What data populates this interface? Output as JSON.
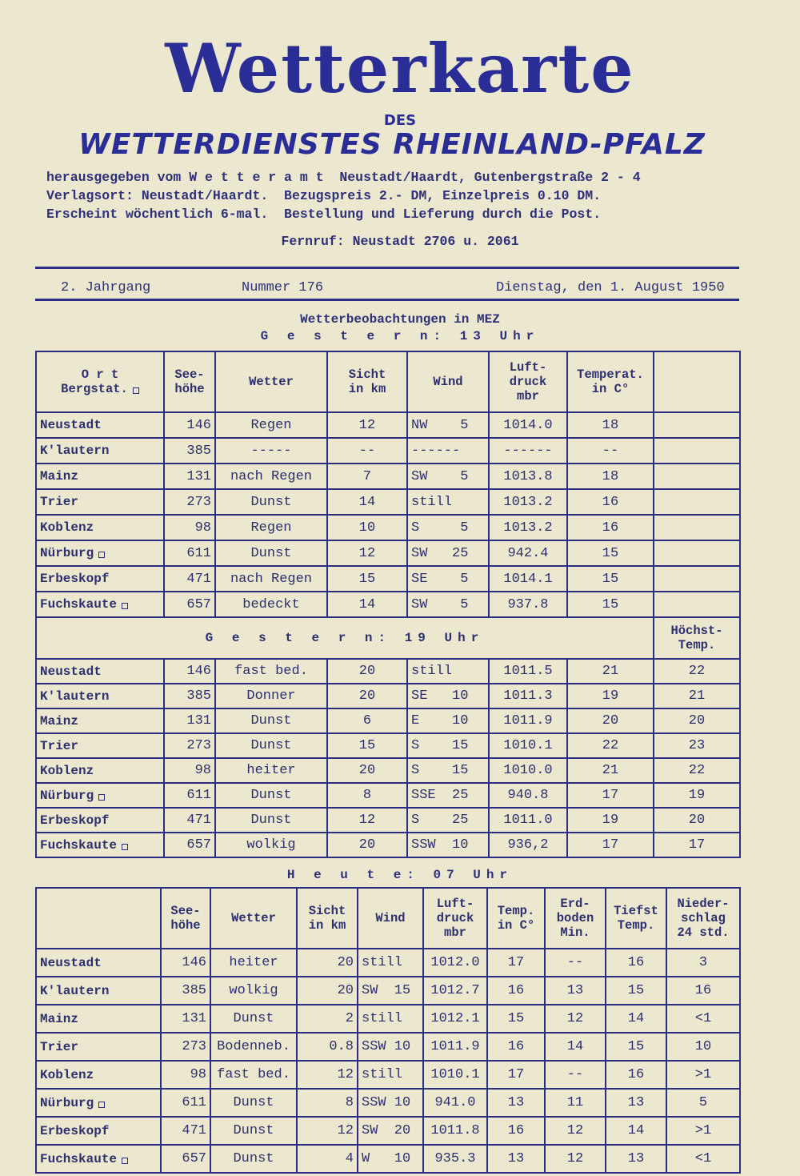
{
  "header": {
    "title": "Wetterkarte",
    "des": "DES",
    "subtitle": "WETTERDIENSTES RHEINLAND-PFALZ",
    "info_lines": [
      "herausgegeben vom W e t t e r a m t  Neustadt/Haardt, Gutenbergstraße 2 - 4",
      "Verlagsort: Neustadt/Haardt.  Bezugspreis 2.- DM, Einzelpreis 0.10 DM.",
      "Erscheint wöchentlich 6-mal.  Bestellung und Lieferung durch die Post."
    ],
    "phone": "Fernruf: Neustadt 2706 u. 2061"
  },
  "issue": {
    "volume": "2.  Jahrgang",
    "number": "Nummer 176",
    "date": "Dienstag, den 1. August 1950"
  },
  "observations_title": "Wetterbeobachtungen in MEZ",
  "section1": {
    "title": "G e s t e r n:  13 Uhr",
    "headers": [
      "O r t\nBergstat. □",
      "See-\nhöhe",
      "Wetter",
      "Sicht\nin km",
      "Wind",
      "Luft-\ndruck\nmbr",
      "Temperat.\nin C°",
      ""
    ],
    "rows": [
      [
        "Neustadt",
        "146",
        "Regen",
        "12",
        "NW    5",
        "1014.0",
        "18",
        ""
      ],
      [
        "K'lautern",
        "385",
        "-----",
        "--",
        "------",
        "------",
        "--",
        ""
      ],
      [
        "Mainz",
        "131",
        "nach Regen",
        "7",
        "SW    5",
        "1013.8",
        "18",
        ""
      ],
      [
        "Trier",
        "273",
        "Dunst",
        "14",
        "still",
        "1013.2",
        "16",
        ""
      ],
      [
        "Koblenz",
        "98",
        "Regen",
        "10",
        "S     5",
        "1013.2",
        "16",
        ""
      ],
      [
        "Nürburg □",
        "611",
        "Dunst",
        "12",
        "SW   25",
        "942.4",
        "15",
        ""
      ],
      [
        "Erbeskopf",
        "471",
        "nach Regen",
        "15",
        "SE    5",
        "1014.1",
        "15",
        ""
      ],
      [
        "Fuchskaute □",
        "657",
        "bedeckt",
        "14",
        "SW    5",
        "937.8",
        "15",
        ""
      ]
    ]
  },
  "section2": {
    "title": "G e s t e r n:  19 Uhr",
    "extra_header": "Höchst-\nTemp.",
    "rows": [
      [
        "Neustadt",
        "146",
        "fast bed.",
        "20",
        "still",
        "1011.5",
        "21",
        "22"
      ],
      [
        "K'lautern",
        "385",
        "Donner",
        "20",
        "SE   10",
        "1011.3",
        "19",
        "21"
      ],
      [
        "Mainz",
        "131",
        "Dunst",
        "6",
        "E    10",
        "1011.9",
        "20",
        "20"
      ],
      [
        "Trier",
        "273",
        "Dunst",
        "15",
        "S    15",
        "1010.1",
        "22",
        "23"
      ],
      [
        "Koblenz",
        "98",
        "heiter",
        "20",
        "S    15",
        "1010.0",
        "21",
        "22"
      ],
      [
        "Nürburg □",
        "611",
        "Dunst",
        "8",
        "SSE  25",
        "940.8",
        "17",
        "19"
      ],
      [
        "Erbeskopf",
        "471",
        "Dunst",
        "12",
        "S    25",
        "1011.0",
        "19",
        "20"
      ],
      [
        "Fuchskaute □",
        "657",
        "wolkig",
        "20",
        "SSW  10",
        "936,2",
        "17",
        "17"
      ]
    ]
  },
  "section3": {
    "title": "H e u t e:  07 Uhr",
    "headers": [
      "",
      "See-\nhöhe",
      "Wetter",
      "Sicht\nin km",
      "Wind",
      "Luft-\ndruck\nmbr",
      "Temp.\nin C°",
      "Erd-\nboden\nMin.",
      "Tiefst\nTemp.",
      "Nieder-\nschlag\n24 std."
    ],
    "rows": [
      [
        "Neustadt",
        "146",
        "heiter",
        "20",
        "still",
        "1012.0",
        "17",
        "--",
        "16",
        "3"
      ],
      [
        "K'lautern",
        "385",
        "wolkig",
        "20",
        "SW  15",
        "1012.7",
        "16",
        "13",
        "15",
        "16"
      ],
      [
        "Mainz",
        "131",
        "Dunst",
        "2",
        "still",
        "1012.1",
        "15",
        "12",
        "14",
        "<1"
      ],
      [
        "Trier",
        "273",
        "Bodenneb.",
        "0.8",
        "SSW 10",
        "1011.9",
        "16",
        "14",
        "15",
        "10"
      ],
      [
        "Koblenz",
        "98",
        "fast bed.",
        "12",
        "still",
        "1010.1",
        "17",
        "--",
        "16",
        ">1"
      ],
      [
        "Nürburg □",
        "611",
        "Dunst",
        "8",
        "SSW 10",
        "941.0",
        "13",
        "11",
        "13",
        "5"
      ],
      [
        "Erbeskopf",
        "471",
        "Dunst",
        "12",
        "SW  20",
        "1011.8",
        "16",
        "12",
        "14",
        ">1"
      ],
      [
        "Fuchskaute □",
        "657",
        "Dunst",
        "4",
        "W   10",
        "935.3",
        "13",
        "12",
        "13",
        "<1"
      ]
    ]
  },
  "colors": {
    "paper": "#ebe8cf",
    "ink": "#2b2c82"
  }
}
